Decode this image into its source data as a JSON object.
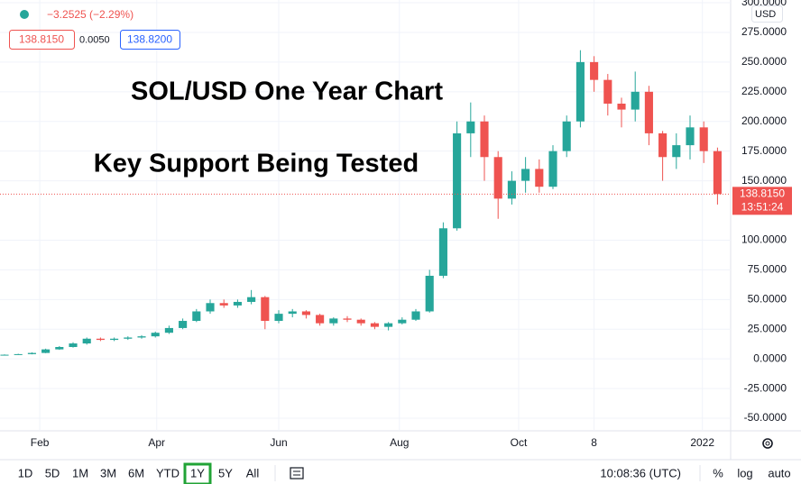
{
  "header": {
    "change": "−3.2525 (−2.29%)",
    "bid": "138.8150",
    "spread": "0.0050",
    "ask": "138.8200",
    "currency": "USD"
  },
  "chart_data": {
    "type": "candlestick",
    "annotations": [
      "SOL/USD One Year Chart",
      "Key Support Being Tested"
    ],
    "up_color": "#26a69a",
    "down_color": "#ef5350",
    "open": [
      3.2,
      3.5,
      4,
      5,
      8,
      10,
      13,
      17,
      16,
      17,
      18,
      19,
      22,
      26,
      32,
      40,
      47,
      45,
      48,
      52,
      32,
      38,
      40,
      37,
      30,
      34,
      33,
      30,
      27,
      30,
      33,
      40,
      70,
      110,
      190,
      200,
      170,
      135,
      150,
      160,
      145,
      175,
      200,
      250,
      235,
      215,
      210,
      225,
      190,
      170,
      180,
      195,
      175
    ],
    "high": [
      3.8,
      4.3,
      5.5,
      8.6,
      10.8,
      14,
      18,
      18,
      18,
      19,
      20,
      23,
      28,
      34,
      42,
      50,
      50,
      50,
      58,
      53,
      41,
      42,
      41,
      38,
      35,
      36,
      34,
      31,
      31,
      35,
      42,
      75,
      115,
      200,
      216,
      205,
      175,
      158,
      170,
      168,
      180,
      205,
      260,
      255,
      240,
      220,
      242,
      230,
      192,
      190,
      205,
      200,
      178
    ],
    "low": [
      3.0,
      3.3,
      3.8,
      4.8,
      7.6,
      9.5,
      12,
      15,
      15,
      16,
      17,
      18,
      21,
      25,
      31,
      38,
      43,
      43,
      46,
      25,
      30,
      35,
      34,
      28,
      28,
      31,
      28,
      25,
      24,
      29,
      32,
      39,
      68,
      108,
      170,
      150,
      118,
      130,
      140,
      140,
      143,
      170,
      195,
      225,
      205,
      195,
      200,
      180,
      150,
      160,
      168,
      165,
      130
    ],
    "close": [
      3.5,
      4,
      5,
      8,
      10,
      13,
      17,
      16,
      17,
      18,
      19,
      22,
      26,
      32,
      40,
      47,
      45,
      48,
      52,
      32,
      38,
      40,
      37,
      30,
      34,
      33,
      30,
      27,
      30,
      33,
      40,
      70,
      110,
      190,
      200,
      170,
      135,
      150,
      160,
      145,
      175,
      200,
      250,
      235,
      215,
      210,
      225,
      190,
      170,
      180,
      195,
      175,
      138.815
    ],
    "xlim": [
      -0.33,
      52.96
    ],
    "xticks": [
      {
        "value": 2.57,
        "label": "Feb"
      },
      {
        "value": 11.1,
        "label": "Apr"
      },
      {
        "value": 20.0,
        "label": "Jun"
      },
      {
        "value": 28.8,
        "label": "Aug"
      },
      {
        "value": 37.5,
        "label": "Oct"
      },
      {
        "value": 43.0,
        "label": "8"
      },
      {
        "value": 50.9,
        "label": "2022"
      }
    ],
    "ylim": [
      -60.6,
      302.3
    ],
    "yticks": [
      {
        "value": 300,
        "label": "300.0000"
      },
      {
        "value": 275,
        "label": "275.0000"
      },
      {
        "value": 250,
        "label": "250.0000"
      },
      {
        "value": 225,
        "label": "225.0000"
      },
      {
        "value": 200,
        "label": "200.0000"
      },
      {
        "value": 175,
        "label": "175.0000"
      },
      {
        "value": 150,
        "label": "150.0000"
      },
      {
        "value": 100,
        "label": "100.0000"
      },
      {
        "value": 75,
        "label": "75.0000"
      },
      {
        "value": 50,
        "label": "50.0000"
      },
      {
        "value": 25,
        "label": "25.0000"
      },
      {
        "value": 0,
        "label": "0.0000"
      },
      {
        "value": -25,
        "label": "-25.0000"
      },
      {
        "value": -50,
        "label": "-50.0000"
      }
    ],
    "grid": true,
    "last_price": 138.815,
    "last_price_label": "138.8150",
    "countdown": "13:51:24"
  },
  "toolbar": {
    "ranges": [
      {
        "label": "1D"
      },
      {
        "label": "5D"
      },
      {
        "label": "1M"
      },
      {
        "label": "3M"
      },
      {
        "label": "6M"
      },
      {
        "label": "YTD"
      },
      {
        "label": "1Y",
        "selected": true
      },
      {
        "label": "5Y"
      },
      {
        "label": "All"
      }
    ],
    "clock": "10:08:36 (UTC)",
    "options": [
      "%",
      "log",
      "auto"
    ]
  }
}
